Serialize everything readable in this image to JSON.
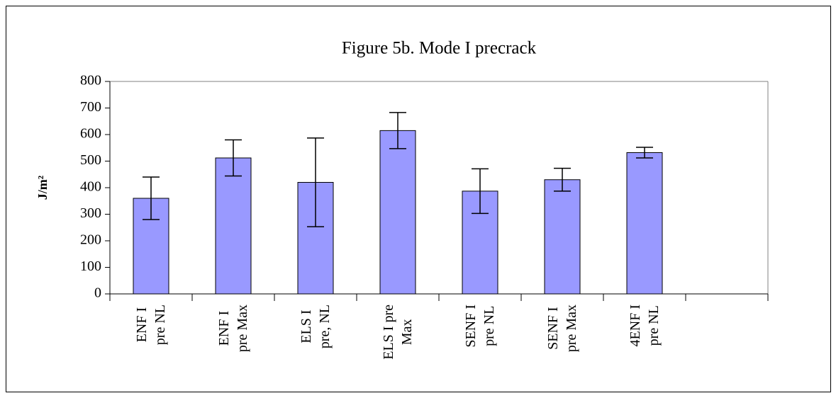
{
  "chart_data": {
    "type": "bar",
    "title": "Figure 5b. Mode I precrack",
    "y_label": "J/m²",
    "categories": [
      "ENF I\npre NL",
      "ENF I\npre Max",
      "ELS I\npre, NL",
      "ELS I pre\nMax",
      "SENF I\npre NL",
      "SENF I\npre Max",
      "4ENF I\npre NL",
      null
    ],
    "values": [
      360,
      512,
      420,
      615,
      387,
      430,
      532,
      null
    ],
    "errors": [
      80,
      68,
      167,
      68,
      84,
      43,
      20,
      null
    ],
    "color": "#9999ff",
    "ylim": [
      0,
      800
    ],
    "yticks": [
      0,
      100,
      200,
      300,
      400,
      500,
      600,
      700,
      800
    ],
    "grid": false
  }
}
